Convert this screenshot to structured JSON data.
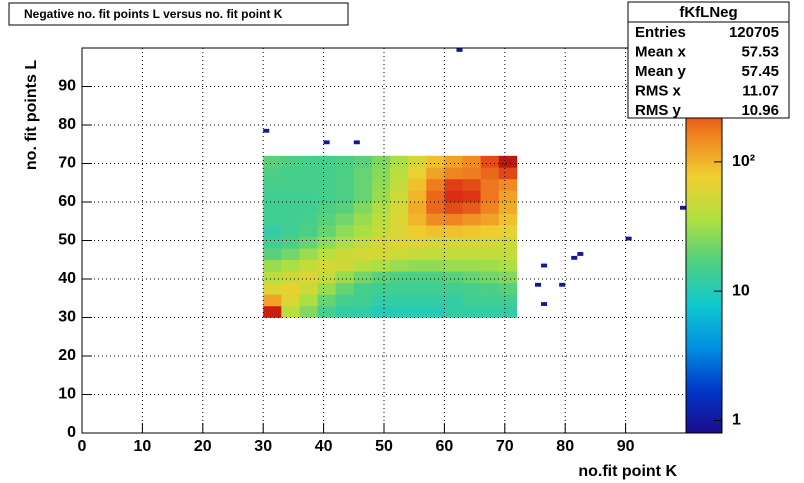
{
  "chart_data": {
    "type": "heatmap",
    "title": "Negative no. fit points L versus no. fit point K",
    "xlabel": "no.fit point K",
    "ylabel": "no. fit points  L",
    "xlim": [
      0,
      100
    ],
    "ylim": [
      0,
      100
    ],
    "xticks": [
      0,
      10,
      20,
      30,
      40,
      50,
      60,
      70,
      80,
      90
    ],
    "yticks": [
      0,
      10,
      20,
      30,
      40,
      50,
      60,
      70,
      80,
      90
    ],
    "grid": true,
    "zlog": true,
    "zlim": [
      0.8,
      760
    ],
    "zticks": [
      1,
      10,
      {
        "value": 100,
        "label": "10²"
      }
    ],
    "colors": [
      "#1a0a8c",
      "#0038c8",
      "#0090e0",
      "#10c8d0",
      "#50d080",
      "#b0e040",
      "#f0d030",
      "#f08020",
      "#d82010",
      "#901010"
    ],
    "xbins": [
      30,
      33,
      36,
      39,
      42,
      45,
      48,
      51,
      54,
      57,
      60,
      63,
      66,
      69,
      72
    ],
    "ybins": [
      30,
      33,
      36,
      39,
      42,
      45,
      48,
      51,
      54,
      57,
      60,
      63,
      66,
      69,
      72
    ],
    "z": [
      [
        400,
        40,
        25,
        15,
        12,
        12,
        10,
        10,
        10,
        10,
        12,
        12,
        12,
        12
      ],
      [
        120,
        60,
        35,
        20,
        15,
        14,
        12,
        12,
        12,
        12,
        12,
        14,
        14,
        14
      ],
      [
        60,
        70,
        50,
        30,
        20,
        15,
        14,
        14,
        14,
        14,
        14,
        15,
        16,
        18
      ],
      [
        40,
        50,
        60,
        45,
        30,
        22,
        18,
        16,
        16,
        16,
        18,
        20,
        22,
        25
      ],
      [
        30,
        35,
        45,
        55,
        50,
        40,
        35,
        30,
        28,
        28,
        30,
        30,
        32,
        35
      ],
      [
        18,
        22,
        30,
        40,
        50,
        55,
        55,
        50,
        45,
        45,
        45,
        45,
        45,
        45
      ],
      [
        14,
        16,
        20,
        28,
        35,
        45,
        55,
        60,
        60,
        55,
        55,
        55,
        55,
        50
      ],
      [
        12,
        14,
        16,
        20,
        28,
        35,
        45,
        60,
        80,
        90,
        90,
        85,
        80,
        70
      ],
      [
        14,
        14,
        15,
        18,
        22,
        30,
        40,
        60,
        100,
        150,
        160,
        140,
        120,
        90
      ],
      [
        14,
        14,
        14,
        16,
        18,
        25,
        35,
        55,
        110,
        200,
        250,
        220,
        160,
        110
      ],
      [
        14,
        14,
        14,
        15,
        16,
        20,
        30,
        50,
        100,
        200,
        320,
        300,
        180,
        120
      ],
      [
        15,
        15,
        15,
        15,
        16,
        20,
        28,
        45,
        90,
        170,
        280,
        250,
        180,
        150
      ],
      [
        16,
        15,
        15,
        15,
        16,
        20,
        26,
        40,
        70,
        120,
        160,
        170,
        200,
        260
      ],
      [
        18,
        16,
        15,
        15,
        16,
        18,
        24,
        35,
        55,
        90,
        120,
        150,
        250,
        500
      ]
    ],
    "outliers": {
      "x": [
        30,
        40,
        45,
        62,
        76,
        75,
        79,
        76,
        81,
        82,
        90,
        99
      ],
      "y": [
        78,
        75,
        75,
        99,
        43,
        38,
        38,
        33,
        45,
        46,
        50,
        58
      ],
      "values": [
        1,
        1,
        1,
        1,
        1,
        1,
        1,
        1,
        1,
        1,
        1,
        1
      ]
    },
    "stats": {
      "name": "fKfLNeg",
      "rows": [
        [
          "Entries",
          "120705"
        ],
        [
          "Mean x",
          "57.53"
        ],
        [
          "Mean y",
          "57.45"
        ],
        [
          "RMS x",
          "11.07"
        ],
        [
          "RMS y",
          "10.96"
        ]
      ]
    }
  }
}
